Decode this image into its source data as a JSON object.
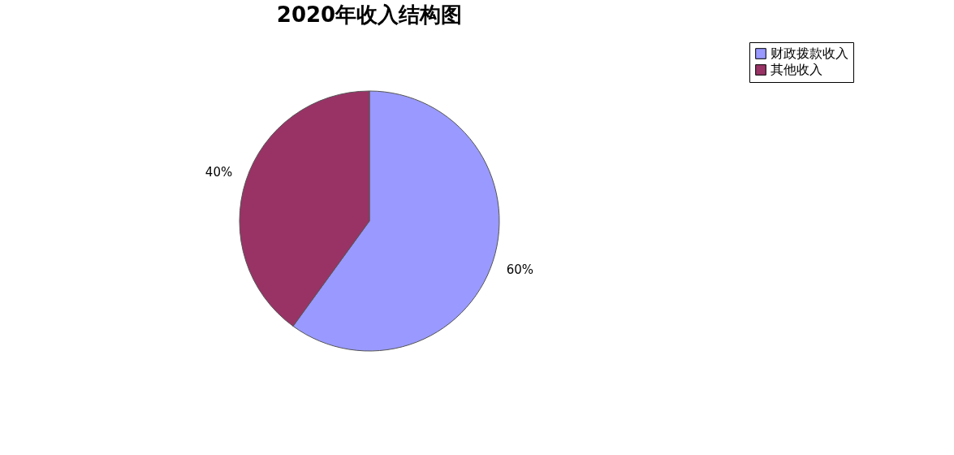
{
  "chart_data": {
    "type": "pie",
    "title": "2020年收入结构图",
    "categories": [
      "财政拨款收入",
      "其他收入"
    ],
    "values": [
      60,
      40
    ],
    "colors": [
      "#9999ff",
      "#993366"
    ],
    "value_labels": [
      "60%",
      "40%"
    ],
    "legend": "right"
  }
}
